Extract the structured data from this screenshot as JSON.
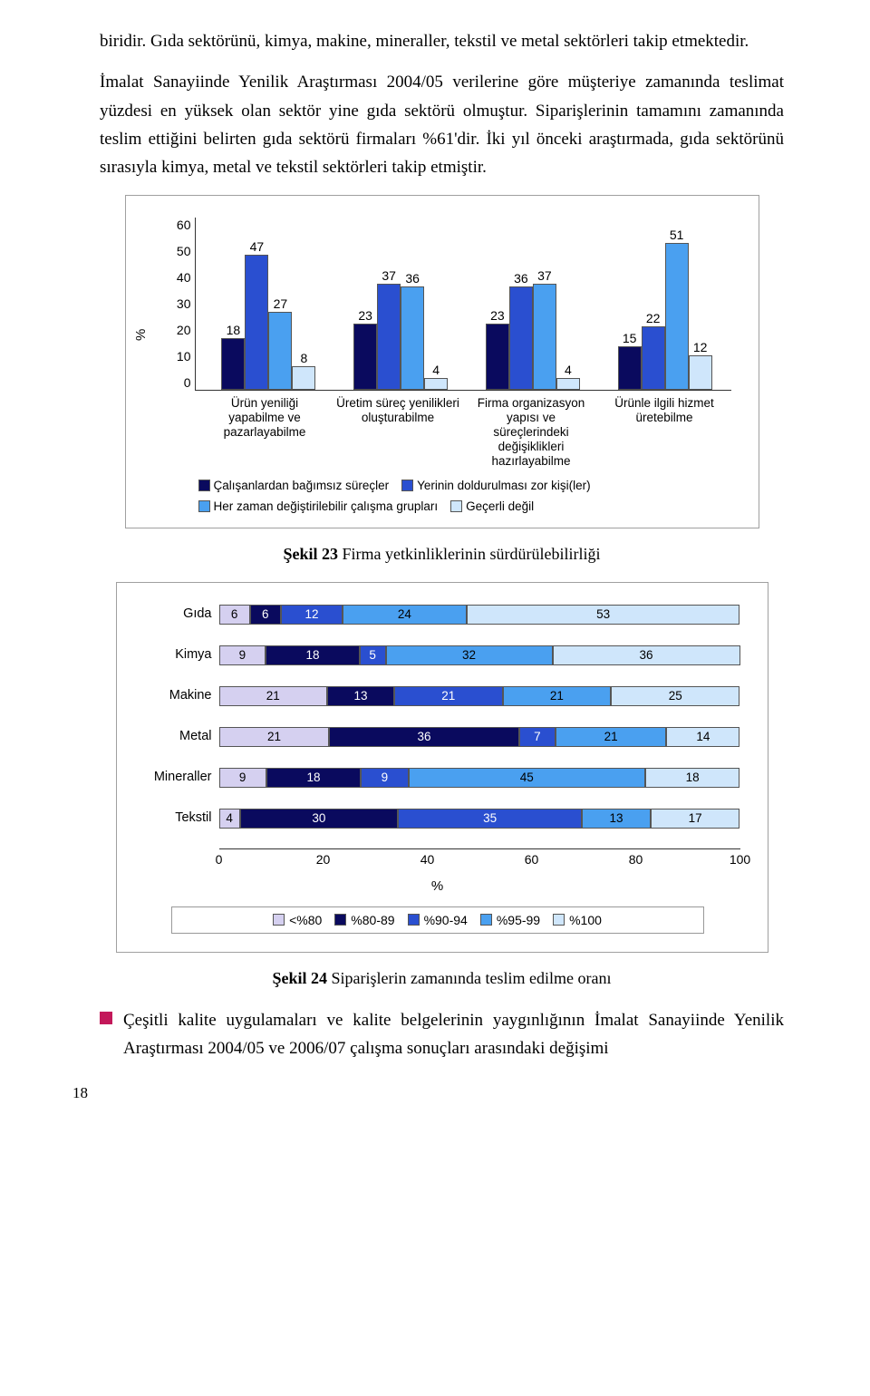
{
  "text": {
    "para1": "biridir. Gıda sektörünü, kimya, makine, mineraller, tekstil ve metal sektörleri takip etmektedir.",
    "para2": "İmalat Sanayiinde Yenilik Araştırması 2004/05 verilerine göre müşteriye zamanında teslimat yüzdesi en yüksek olan sektör yine gıda sektörü olmuştur. Siparişlerinin tamamını zamanında teslim ettiğini belirten gıda sektörü firmaları %61'dir. İki yıl önceki araştırmada, gıda sektörünü sırasıyla kimya, metal ve tekstil sektörleri takip etmiştir.",
    "caption1_b": "Şekil 23",
    "caption1_r": " Firma yetkinliklerinin sürdürülebilirliği",
    "caption2_b": "Şekil 24",
    "caption2_r": " Siparişlerin zamanında teslim edilme oranı",
    "bullet": "Çeşitli kalite uygulamaları ve kalite belgelerinin yaygınlığının İmalat Sanayiinde Yenilik Araştırması 2004/05 ve 2006/07 çalışma sonuçları arasındaki değişimi",
    "page_num": "18"
  },
  "chart1": {
    "ylabel": "%",
    "ymax": 60,
    "yticks": [
      "60",
      "50",
      "40",
      "30",
      "20",
      "10",
      "0"
    ],
    "categories": [
      "Ürün yeniliği yapabilme ve pazarlayabilme",
      "Üretim süreç yenilikleri oluşturabilme",
      "Firma organizasyon yapısı ve süreçlerindeki değişiklikleri hazırlayabilme",
      "Ürünle ilgili hizmet üretebilme"
    ],
    "series_colors": [
      "#0a0a5e",
      "#2a4fd0",
      "#4aa0f0",
      "#cfe6fb"
    ],
    "series_labels": [
      "Çalışanlardan bağımsız süreçler",
      "Yerinin doldurulması zor kişi(ler)",
      "Her zaman değiştirilebilir çalışma grupları",
      "Geçerli değil"
    ],
    "data": [
      [
        18,
        47,
        27,
        8
      ],
      [
        23,
        37,
        36,
        4
      ],
      [
        23,
        36,
        37,
        4
      ],
      [
        15,
        22,
        51,
        12
      ]
    ]
  },
  "chart2": {
    "rows": [
      "Gıda",
      "Kimya",
      "Makine",
      "Metal",
      "Mineraller",
      "Tekstil"
    ],
    "series_colors": [
      "#d5d0f0",
      "#0a0a5e",
      "#2a4fd0",
      "#4aa0f0",
      "#cfe6fb"
    ],
    "series_labels": [
      "<%80",
      "%80-89",
      "%90-94",
      "%95-99",
      "%100"
    ],
    "data": [
      [
        6,
        6,
        12,
        24,
        53
      ],
      [
        9,
        18,
        5,
        32,
        36
      ],
      [
        21,
        13,
        21,
        21,
        25
      ],
      [
        21,
        36,
        7,
        21,
        14
      ],
      [
        9,
        18,
        9,
        45,
        18
      ],
      [
        4,
        30,
        35,
        13,
        17
      ]
    ],
    "xticks": [
      "0",
      "20",
      "40",
      "60",
      "80",
      "100"
    ],
    "xlabel": "%"
  }
}
